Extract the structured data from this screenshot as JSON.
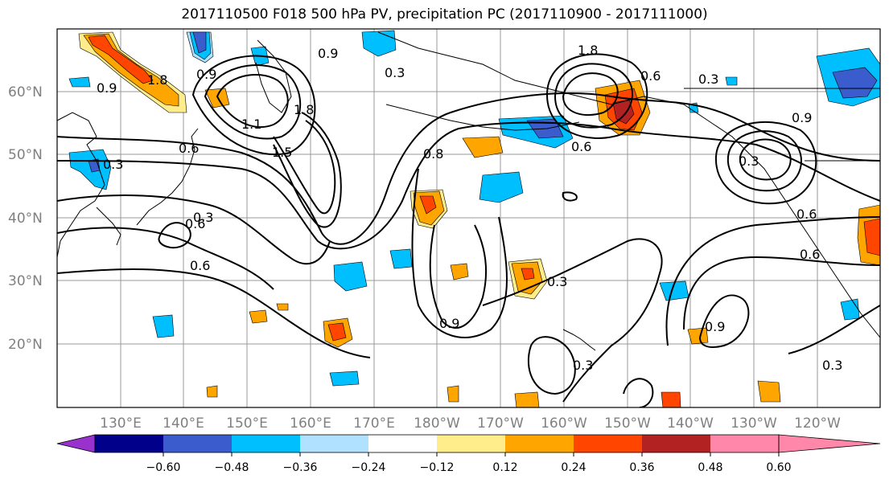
{
  "title": "2017110500 F018 500 hPa PV, precipitation PC (2017110900 - 2017111000)",
  "lat_labels": [
    "60°N",
    "50°N",
    "40°N",
    "30°N",
    "20°N"
  ],
  "lon_labels": [
    "130°E",
    "140°E",
    "150°E",
    "160°E",
    "170°E",
    "180°W",
    "170°W",
    "160°W",
    "150°W",
    "140°W",
    "130°W",
    "120°W"
  ],
  "contour_labels": [
    "0.9",
    "0.3",
    "1.8",
    "1.1",
    "0.6",
    "0.3",
    "0.9",
    "0.6",
    "0.3",
    "1.5",
    "1.8",
    "0.8",
    "0.9",
    "1.8",
    "0.6",
    "0.3",
    "0.9",
    "0.3",
    "0.9",
    "0.6",
    "0.6",
    "0.3",
    "0.9",
    "0.6",
    "0.3",
    "0.3",
    "0.6"
  ],
  "colorbar": {
    "ticks": [
      "−0.60",
      "−0.48",
      "−0.36",
      "−0.24",
      "−0.12",
      "0.12",
      "0.24",
      "0.36",
      "0.48",
      "0.60"
    ],
    "colors": [
      "#9932cc",
      "#00008b",
      "#3a5ccc",
      "#00bfff",
      "#b0e2ff",
      "#ffffff",
      "#ffec8b",
      "#ffa500",
      "#ff4500",
      "#b22222",
      "#ff88aa"
    ]
  }
}
